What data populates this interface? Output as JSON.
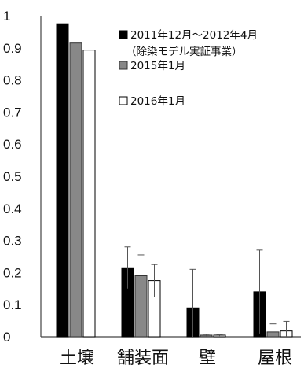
{
  "chart_data": {
    "type": "bar",
    "title": "",
    "xlabel": "",
    "ylabel": "",
    "ylim": [
      0,
      1
    ],
    "yticks": [
      0,
      0.1,
      0.2,
      0.3,
      0.4,
      0.5,
      0.6,
      0.7,
      0.8,
      0.9,
      1
    ],
    "ytick_labels": [
      "0",
      "0.1",
      "0.2",
      "0.3",
      "0.4",
      "0.5",
      "0.6",
      "0.7",
      "0.8",
      "0.9",
      "1"
    ],
    "grid": false,
    "legend_position": "top-right",
    "categories": [
      "土壌",
      "舗装面",
      "壁",
      "屋根"
    ],
    "series": [
      {
        "name": "2011年12月～2012年4月",
        "name_line2": "（除染モデル実証事業）",
        "color": "#000000",
        "values": [
          0.975,
          0.215,
          0.09,
          0.14
        ],
        "errors": [
          null,
          0.065,
          0.12,
          0.13
        ]
      },
      {
        "name": "2015年1月",
        "color": "#888888",
        "values": [
          0.915,
          0.19,
          0.005,
          0.015
        ],
        "errors": [
          null,
          0.065,
          0.003,
          0.025
        ]
      },
      {
        "name": "2016年1月",
        "color": "#ffffff",
        "values": [
          0.893,
          0.175,
          0.005,
          0.018
        ],
        "errors": [
          null,
          0.05,
          0.003,
          0.03
        ]
      }
    ]
  }
}
